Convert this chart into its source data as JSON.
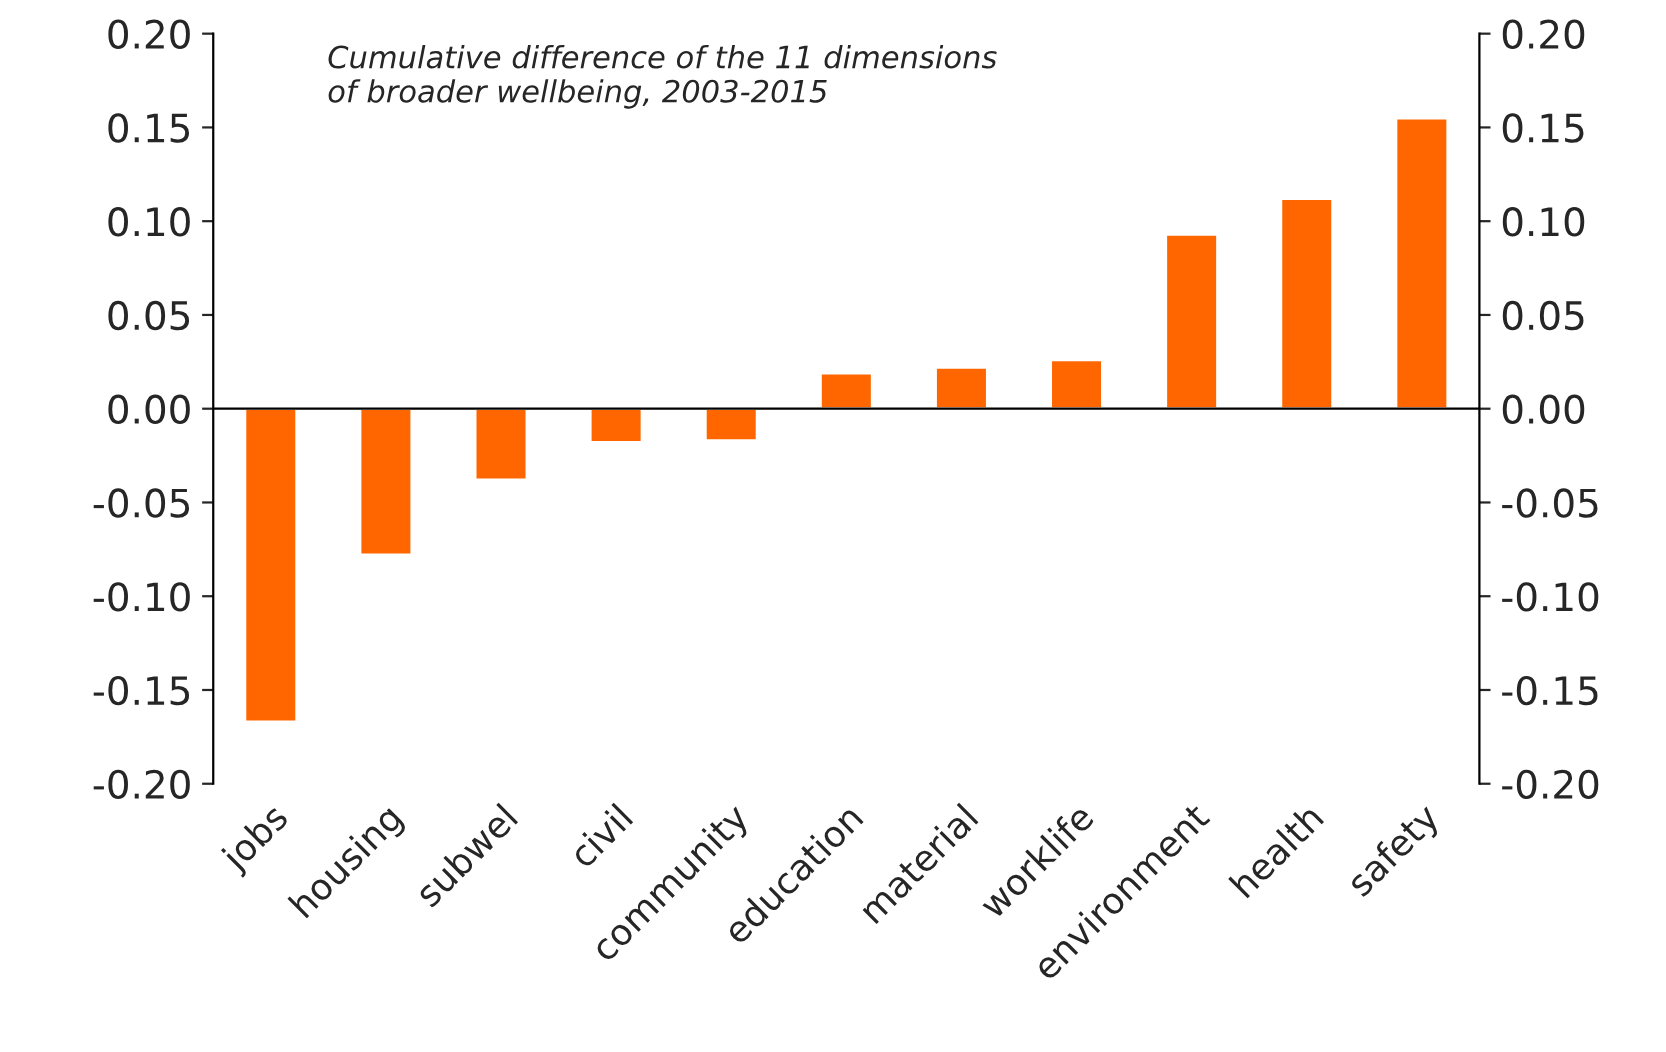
{
  "chart_data": {
    "type": "bar",
    "title": "Cumulative difference of the 11 dimensions\nof broader wellbeing, 2003-2015",
    "categories": [
      "jobs",
      "housing",
      "subwel",
      "civil",
      "community",
      "education",
      "material",
      "worklife",
      "environment",
      "health",
      "safety"
    ],
    "values": [
      -0.167,
      -0.078,
      -0.038,
      -0.018,
      -0.017,
      0.019,
      0.022,
      0.026,
      0.093,
      0.112,
      0.155
    ],
    "color": "#ff6600",
    "ylim": [
      -0.2,
      0.2
    ],
    "yticks": [
      {
        "value": -0.2,
        "label": "-0.20"
      },
      {
        "value": -0.15,
        "label": "-0.15"
      },
      {
        "value": -0.1,
        "label": "-0.10"
      },
      {
        "value": -0.05,
        "label": "-0.05"
      },
      {
        "value": 0,
        "label": "0.00"
      },
      {
        "value": 0.05,
        "label": "0.05"
      },
      {
        "value": 0.1,
        "label": "0.10"
      },
      {
        "value": 0.15,
        "label": "0.15"
      },
      {
        "value": 0.2,
        "label": "0.20"
      }
    ],
    "y2lim": [
      -0.2,
      0.2
    ],
    "y2ticks": [
      {
        "value": -0.2,
        "label": "-0.20"
      },
      {
        "value": -0.15,
        "label": "-0.15"
      },
      {
        "value": -0.1,
        "label": "-0.10"
      },
      {
        "value": -0.05,
        "label": "-0.05"
      },
      {
        "value": 0,
        "label": "0.00"
      },
      {
        "value": 0.05,
        "label": "0.05"
      },
      {
        "value": 0.1,
        "label": "0.10"
      },
      {
        "value": 0.15,
        "label": "0.15"
      },
      {
        "value": 0.2,
        "label": "0.20"
      }
    ],
    "ref_lines": [
      {
        "axis": "y",
        "value": 0,
        "color": "#000000",
        "line_style": "solid"
      }
    ],
    "grid": false,
    "legend": false
  }
}
